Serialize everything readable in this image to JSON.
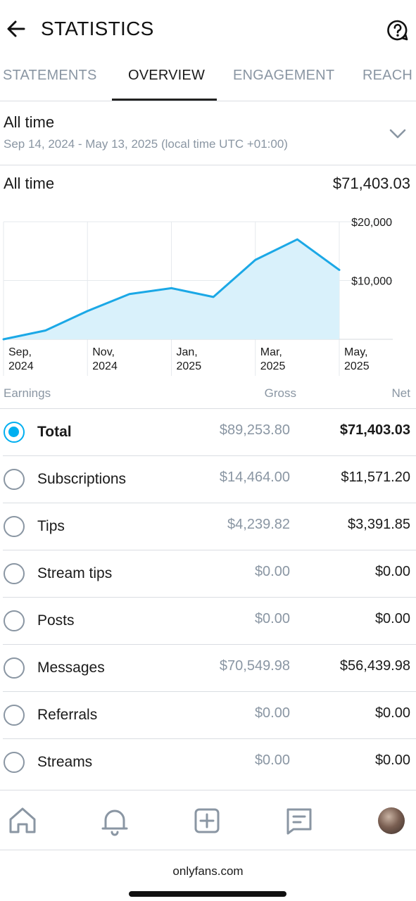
{
  "header": {
    "title": "STATISTICS"
  },
  "tabs": [
    {
      "label": "STATEMENTS",
      "active": false
    },
    {
      "label": "OVERVIEW",
      "active": true
    },
    {
      "label": "ENGAGEMENT",
      "active": false
    },
    {
      "label": "REACH",
      "active": false
    }
  ],
  "period": {
    "title": "All time",
    "range": "Sep 14, 2024 - May 13, 2025 (local time UTC +01:00)"
  },
  "summary": {
    "label": "All time",
    "value": "$71,403.03"
  },
  "chart_data": {
    "type": "area",
    "x": [
      "Sep 2024",
      "Oct 2024",
      "Nov 2024",
      "Dec 2024",
      "Jan 2025",
      "Feb 2025",
      "Mar 2025",
      "Apr 2025",
      "May 2025"
    ],
    "values": [
      0,
      1500,
      4800,
      7700,
      8700,
      7200,
      13500,
      17000,
      11800
    ],
    "y_ticks": [
      "$10,000",
      "$20,000"
    ],
    "y_tick_values": [
      10000,
      20000
    ],
    "x_tick_labels": [
      {
        "line1": "Sep,",
        "line2": "2024"
      },
      {
        "line1": "Nov,",
        "line2": "2024"
      },
      {
        "line1": "Jan,",
        "line2": "2025"
      },
      {
        "line1": "Mar,",
        "line2": "2025"
      },
      {
        "line1": "May,",
        "line2": "2025"
      }
    ],
    "ylim": [
      0,
      20000
    ],
    "grid": true,
    "line_color": "#1ba8e6",
    "fill_color": "#d9f1fb"
  },
  "earnings": {
    "headers": {
      "category": "Earnings",
      "gross": "Gross",
      "net": "Net"
    },
    "rows": [
      {
        "label": "Total",
        "gross": "$89,253.80",
        "net": "$71,403.03",
        "selected": true
      },
      {
        "label": "Subscriptions",
        "gross": "$14,464.00",
        "net": "$11,571.20",
        "selected": false
      },
      {
        "label": "Tips",
        "gross": "$4,239.82",
        "net": "$3,391.85",
        "selected": false
      },
      {
        "label": "Stream tips",
        "gross": "$0.00",
        "net": "$0.00",
        "selected": false
      },
      {
        "label": "Posts",
        "gross": "$0.00",
        "net": "$0.00",
        "selected": false
      },
      {
        "label": "Messages",
        "gross": "$70,549.98",
        "net": "$56,439.98",
        "selected": false
      },
      {
        "label": "Referrals",
        "gross": "$0.00",
        "net": "$0.00",
        "selected": false
      },
      {
        "label": "Streams",
        "gross": "$0.00",
        "net": "$0.00",
        "selected": false
      }
    ]
  },
  "bottom_nav": [
    "home-icon",
    "bell-icon",
    "add-post-icon",
    "messages-icon",
    "avatar"
  ],
  "browser": {
    "url": "onlyfans.com"
  },
  "colors": {
    "accent": "#00aff0",
    "muted": "#8a96a3",
    "divider": "#dadde2"
  }
}
